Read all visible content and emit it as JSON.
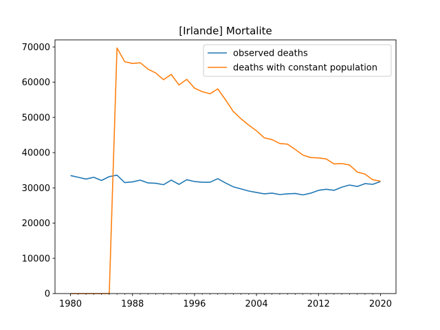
{
  "chart_data": {
    "type": "line",
    "title": "[Irlande] Mortalite",
    "xlabel": "",
    "ylabel": "",
    "xlim": [
      1978,
      2022
    ],
    "ylim": [
      0,
      72000
    ],
    "xticks": [
      1980,
      1988,
      1996,
      2004,
      2012,
      2020
    ],
    "xticks_minor_step": 1,
    "yticks": [
      0,
      10000,
      20000,
      30000,
      40000,
      50000,
      60000,
      70000
    ],
    "grid": false,
    "legend_position": "top-right",
    "x": [
      1980,
      1981,
      1982,
      1983,
      1984,
      1985,
      1986,
      1987,
      1988,
      1989,
      1990,
      1991,
      1992,
      1993,
      1994,
      1995,
      1996,
      1997,
      1998,
      1999,
      2000,
      2001,
      2002,
      2003,
      2004,
      2005,
      2006,
      2007,
      2008,
      2009,
      2010,
      2011,
      2012,
      2013,
      2014,
      2015,
      2016,
      2017,
      2018,
      2019,
      2020
    ],
    "series": [
      {
        "name": "observed deaths",
        "color": "#1f77b4",
        "values": [
          33500,
          33000,
          32500,
          33000,
          32100,
          33200,
          33600,
          31500,
          31700,
          32200,
          31400,
          31300,
          30900,
          32200,
          31000,
          32300,
          31800,
          31600,
          31600,
          32600,
          31400,
          30300,
          29700,
          29100,
          28700,
          28300,
          28500,
          28100,
          28300,
          28400,
          28000,
          28500,
          29300,
          29600,
          29300,
          30200,
          30800,
          30400,
          31200,
          31000,
          31800
        ]
      },
      {
        "name": "deaths with constant population",
        "color": "#ff7f0e",
        "values": [
          0,
          0,
          0,
          0,
          0,
          0,
          69700,
          65800,
          65300,
          65500,
          63700,
          62600,
          60700,
          62200,
          59200,
          60800,
          58300,
          57300,
          56700,
          58100,
          55000,
          51700,
          49600,
          47800,
          46200,
          44200,
          43700,
          42600,
          42400,
          40900,
          39300,
          38600,
          38500,
          38200,
          36800,
          36900,
          36500,
          34500,
          33900,
          32300,
          31900
        ]
      }
    ]
  }
}
